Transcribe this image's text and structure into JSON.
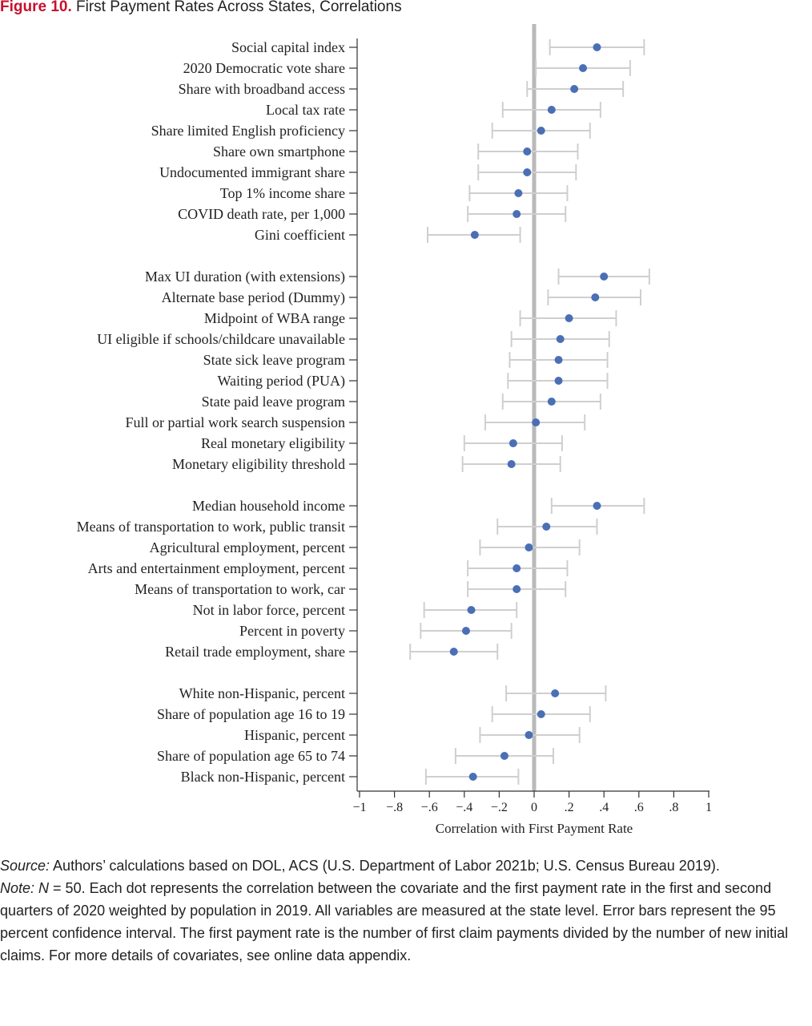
{
  "figure": {
    "number": "Figure 10.",
    "title": "First Payment Rates Across States, Correlations"
  },
  "chart_data": {
    "type": "scatter",
    "subtype": "dot-with-error-bars",
    "orientation": "horizontal",
    "xlabel": "Correlation with First Payment Rate",
    "xlim": [
      -1,
      1
    ],
    "xticks": [
      -1,
      -0.8,
      -0.6,
      -0.4,
      -0.2,
      0,
      0.2,
      0.4,
      0.6,
      0.8,
      1
    ],
    "xtick_labels": [
      "−1",
      "−.8",
      "−.6",
      "−.4",
      "−.2",
      "0",
      ".2",
      ".4",
      ".6",
      ".8",
      "1"
    ],
    "reference_line": 0,
    "point_color": "#4a6fb5",
    "errorbar_color": "#cfcfcf",
    "groups": [
      {
        "items": [
          {
            "label": "Social capital index",
            "value": 0.36,
            "lo": 0.09,
            "hi": 0.63
          },
          {
            "label": "2020 Democratic vote share",
            "value": 0.28,
            "lo": 0.01,
            "hi": 0.55
          },
          {
            "label": "Share with broadband access",
            "value": 0.23,
            "lo": -0.04,
            "hi": 0.51
          },
          {
            "label": "Local tax rate",
            "value": 0.1,
            "lo": -0.18,
            "hi": 0.38
          },
          {
            "label": "Share limited English proficiency",
            "value": 0.04,
            "lo": -0.24,
            "hi": 0.32
          },
          {
            "label": "Share own smartphone",
            "value": -0.04,
            "lo": -0.32,
            "hi": 0.25
          },
          {
            "label": "Undocumented immigrant share",
            "value": -0.04,
            "lo": -0.32,
            "hi": 0.24
          },
          {
            "label": "Top 1% income share",
            "value": -0.09,
            "lo": -0.37,
            "hi": 0.19
          },
          {
            "label": "COVID death rate, per 1,000",
            "value": -0.1,
            "lo": -0.38,
            "hi": 0.18
          },
          {
            "label": "Gini coefficient",
            "value": -0.34,
            "lo": -0.61,
            "hi": -0.08
          }
        ]
      },
      {
        "items": [
          {
            "label": "Max UI duration (with extensions)",
            "value": 0.4,
            "lo": 0.14,
            "hi": 0.66
          },
          {
            "label": "Alternate base period (Dummy)",
            "value": 0.35,
            "lo": 0.08,
            "hi": 0.61
          },
          {
            "label": "Midpoint of WBA range",
            "value": 0.2,
            "lo": -0.08,
            "hi": 0.47
          },
          {
            "label": "UI eligible if schools/childcare unavailable",
            "value": 0.15,
            "lo": -0.13,
            "hi": 0.43
          },
          {
            "label": "State sick leave program",
            "value": 0.14,
            "lo": -0.14,
            "hi": 0.42
          },
          {
            "label": "Waiting period (PUA)",
            "value": 0.14,
            "lo": -0.15,
            "hi": 0.42
          },
          {
            "label": "State paid leave program",
            "value": 0.1,
            "lo": -0.18,
            "hi": 0.38
          },
          {
            "label": "Full or partial work search suspension",
            "value": 0.01,
            "lo": -0.28,
            "hi": 0.29
          },
          {
            "label": "Real monetary eligibility",
            "value": -0.12,
            "lo": -0.4,
            "hi": 0.16
          },
          {
            "label": "Monetary eligibility threshold",
            "value": -0.13,
            "lo": -0.41,
            "hi": 0.15
          }
        ]
      },
      {
        "items": [
          {
            "label": "Median household income",
            "value": 0.36,
            "lo": 0.1,
            "hi": 0.63
          },
          {
            "label": "Means of transportation to work, public transit",
            "value": 0.07,
            "lo": -0.21,
            "hi": 0.36
          },
          {
            "label": "Agricultural employment, percent",
            "value": -0.03,
            "lo": -0.31,
            "hi": 0.26
          },
          {
            "label": "Arts and entertainment employment, percent",
            "value": -0.1,
            "lo": -0.38,
            "hi": 0.19
          },
          {
            "label": "Means of transportation to work, car",
            "value": -0.1,
            "lo": -0.38,
            "hi": 0.18
          },
          {
            "label": "Not in labor force, percent",
            "value": -0.36,
            "lo": -0.63,
            "hi": -0.1
          },
          {
            "label": "Percent in poverty",
            "value": -0.39,
            "lo": -0.65,
            "hi": -0.13
          },
          {
            "label": "Retail trade employment, share",
            "value": -0.46,
            "lo": -0.71,
            "hi": -0.21
          }
        ]
      },
      {
        "items": [
          {
            "label": "White non-Hispanic, percent",
            "value": 0.12,
            "lo": -0.16,
            "hi": 0.41
          },
          {
            "label": "Share of population age 16 to 19",
            "value": 0.04,
            "lo": -0.24,
            "hi": 0.32
          },
          {
            "label": "Hispanic, percent",
            "value": -0.03,
            "lo": -0.31,
            "hi": 0.26
          },
          {
            "label": "Share of population age 65 to 74",
            "value": -0.17,
            "lo": -0.45,
            "hi": 0.11
          },
          {
            "label": "Black non-Hispanic, percent",
            "value": -0.35,
            "lo": -0.62,
            "hi": -0.09
          }
        ]
      }
    ]
  },
  "notes": {
    "source_label": "Source:",
    "source_text": " Authors’ calculations based on DOL, ACS (U.S. Department of Labor 2021b; U.S. Census Bureau 2019).",
    "note_label": "Note:",
    "note_n": "N",
    "note_text": " = 50. Each dot represents the correlation between the covariate and the first payment rate in the first and second quarters of 2020 weighted by population in 2019. All variables are measured at the state level. Error bars represent the 95 percent confidence interval. The first payment rate is the number of first claim payments divided by the number of new initial claims. For more details of covariates, see online data appendix."
  }
}
